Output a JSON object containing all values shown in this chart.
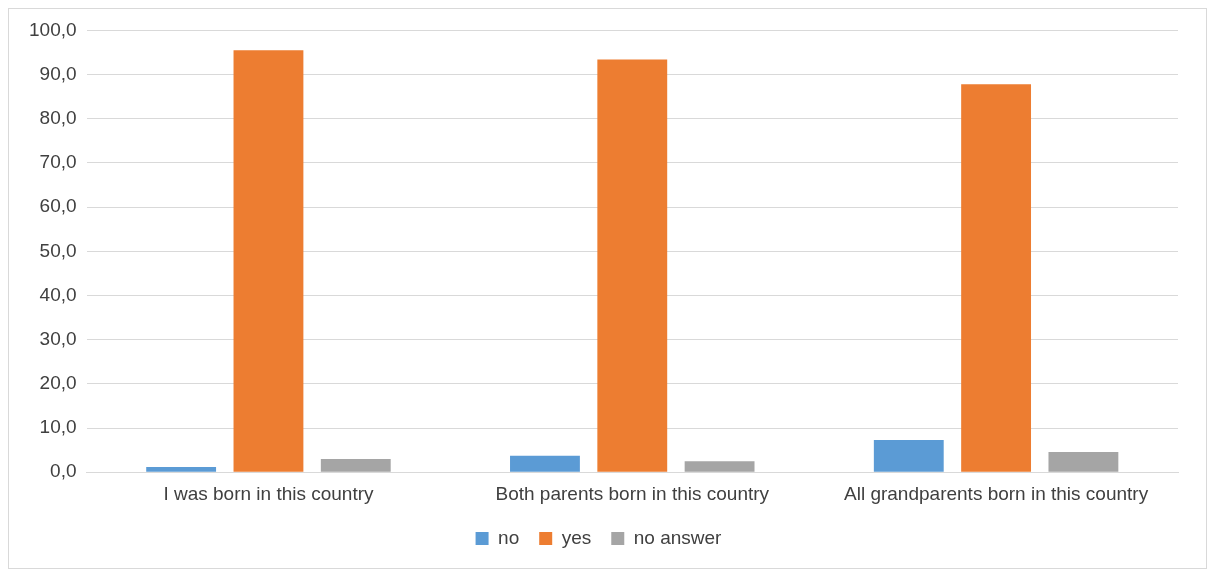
{
  "chart_data": {
    "type": "bar",
    "categories": [
      "I was born in this country",
      "Both parents born in this country",
      "All grandparents born in this country"
    ],
    "series": [
      {
        "name": "no",
        "color": "#5b9bd5",
        "values": [
          1.2,
          3.7,
          7.3
        ]
      },
      {
        "name": "yes",
        "color": "#ed7d31",
        "values": [
          95.5,
          93.4,
          87.8
        ]
      },
      {
        "name": "no answer",
        "color": "#a5a5a5",
        "values": [
          3.0,
          2.5,
          4.6
        ]
      }
    ],
    "ylim": [
      0,
      100
    ],
    "yticks": [
      {
        "value": 0,
        "label": "0,0"
      },
      {
        "value": 10,
        "label": "10,0"
      },
      {
        "value": 20,
        "label": "20,0"
      },
      {
        "value": 30,
        "label": "30,0"
      },
      {
        "value": 40,
        "label": "40,0"
      },
      {
        "value": 50,
        "label": "50,0"
      },
      {
        "value": 60,
        "label": "60,0"
      },
      {
        "value": 70,
        "label": "70,0"
      },
      {
        "value": 80,
        "label": "80,0"
      },
      {
        "value": 90,
        "label": "90,0"
      },
      {
        "value": 100,
        "label": "100,0"
      }
    ],
    "grid": "y",
    "legend": "bottom"
  }
}
